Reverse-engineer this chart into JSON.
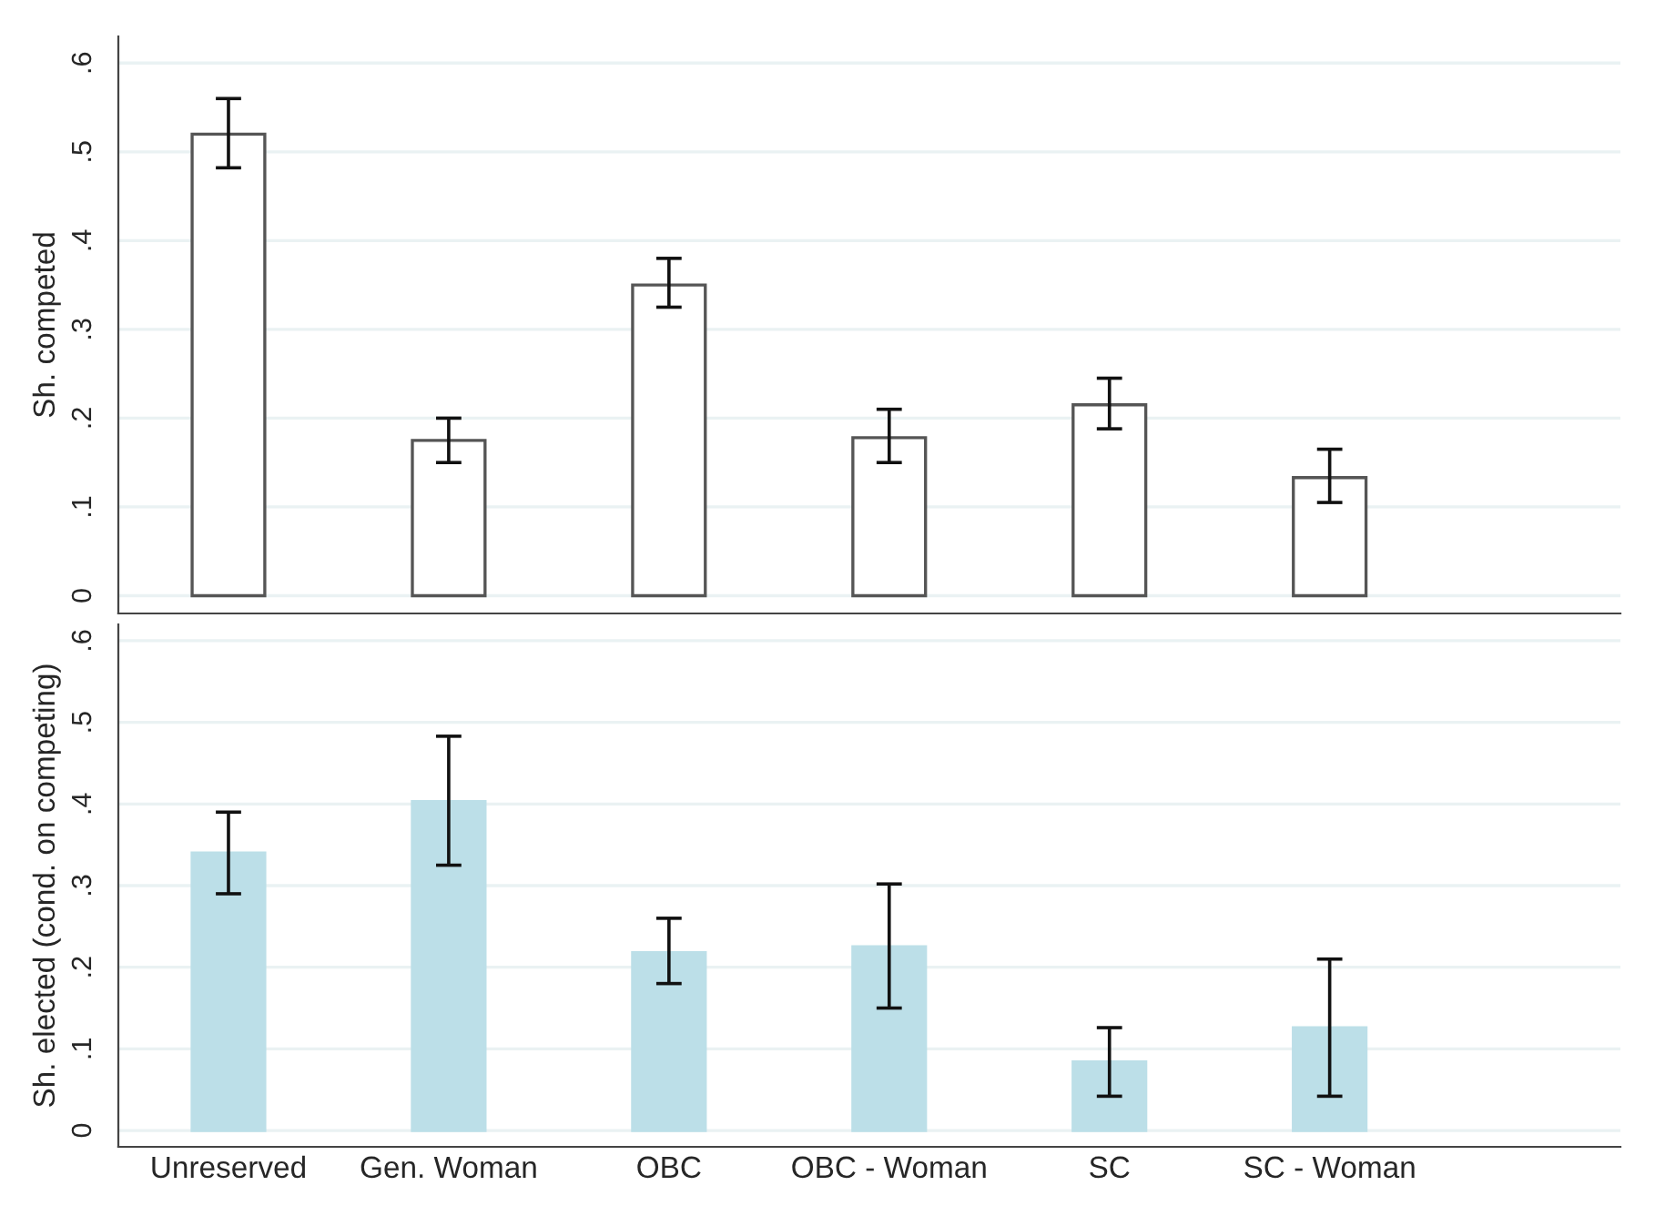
{
  "chart_data": [
    {
      "type": "bar",
      "ylabel": "Sh. competed",
      "categories": [
        null,
        null,
        null,
        null,
        null,
        null
      ],
      "series": [
        {
          "color": "#ffffff",
          "values": [
            0.52,
            0.175,
            0.35,
            0.178,
            0.215,
            0.133
          ],
          "errors": [
            [
              0.482,
              0.56
            ],
            [
              0.15,
              0.2
            ],
            [
              0.325,
              0.38
            ],
            [
              0.15,
              0.21
            ],
            [
              0.188,
              0.245
            ],
            [
              0.105,
              0.165
            ]
          ]
        }
      ],
      "ylim": [
        -0.02,
        0.63
      ],
      "yticks": [
        {
          "value": 0,
          "label": "0"
        },
        {
          "value": 0.1,
          "label": ".1"
        },
        {
          "value": 0.2,
          "label": ".2"
        },
        {
          "value": 0.3,
          "label": ".3"
        },
        {
          "value": 0.4,
          "label": ".4"
        },
        {
          "value": 0.5,
          "label": ".5"
        },
        {
          "value": 0.6,
          "label": ".6"
        }
      ],
      "grid": "y",
      "tick_labels": "y"
    },
    {
      "type": "bar",
      "ylabel": "Sh. elected (cond. on competing)",
      "categories": [
        "Unreserved",
        "Gen. Woman",
        "OBC",
        "OBC - Woman",
        "SC",
        "SC - Woman"
      ],
      "series": [
        {
          "color": "#bcdfe8",
          "values": [
            0.34,
            0.403,
            0.218,
            0.225,
            0.084,
            0.126
          ],
          "errors": [
            [
              0.29,
              0.39
            ],
            [
              0.325,
              0.483
            ],
            [
              0.18,
              0.26
            ],
            [
              0.15,
              0.302
            ],
            [
              0.042,
              0.126
            ],
            [
              0.042,
              0.21
            ]
          ]
        }
      ],
      "ylim": [
        -0.02,
        0.62
      ],
      "yticks": [
        {
          "value": 0,
          "label": "0"
        },
        {
          "value": 0.1,
          "label": ".1"
        },
        {
          "value": 0.2,
          "label": ".2"
        },
        {
          "value": 0.3,
          "label": ".3"
        },
        {
          "value": 0.4,
          "label": ".4"
        },
        {
          "value": 0.5,
          "label": ".5"
        },
        {
          "value": 0.6,
          "label": ".6"
        }
      ],
      "grid": "y"
    }
  ]
}
